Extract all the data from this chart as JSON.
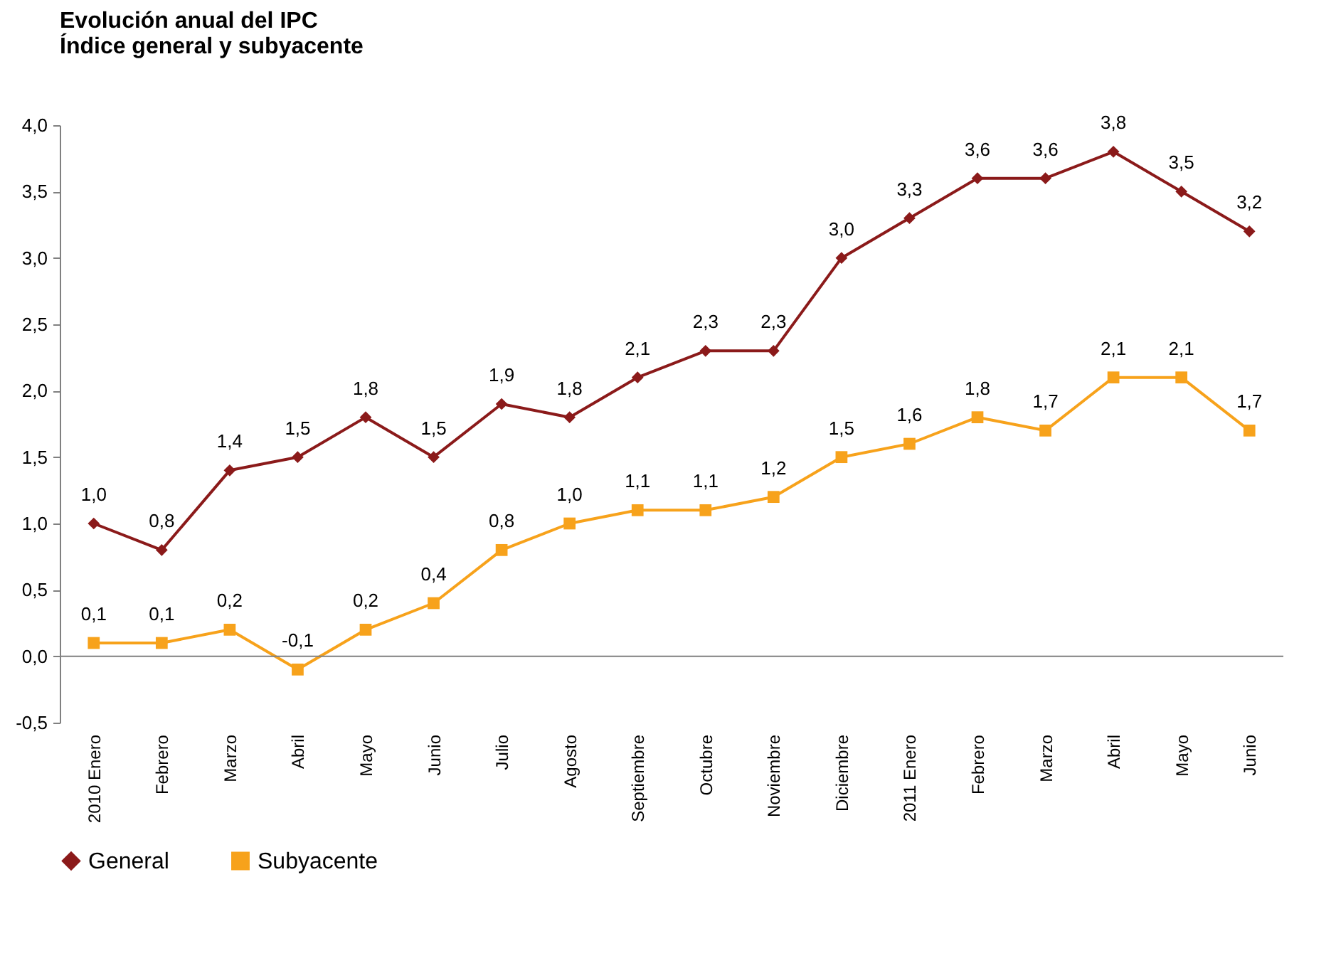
{
  "chart_data": {
    "type": "line",
    "title": "Evolución anual del IPC\nÍndice general y subyacente",
    "categories": [
      "2010 Enero",
      "Febrero",
      "Marzo",
      "Abril",
      "Mayo",
      "Junio",
      "Julio",
      "Agosto",
      "Septiembre",
      "Octubre",
      "Noviembre",
      "Diciembre",
      "2011 Enero",
      "Febrero",
      "Marzo",
      "Abril",
      "Mayo",
      "Junio"
    ],
    "series": [
      {
        "name": "General",
        "color": "#8b1a1a",
        "marker": "diamond",
        "values": [
          1.0,
          0.8,
          1.4,
          1.5,
          1.8,
          1.5,
          1.9,
          1.8,
          2.1,
          2.3,
          2.3,
          3.0,
          3.3,
          3.6,
          3.6,
          3.8,
          3.5,
          3.2
        ],
        "value_labels": [
          "1,0",
          "0,8",
          "1,4",
          "1,5",
          "1,8",
          "1,5",
          "1,9",
          "1,8",
          "2,1",
          "2,3",
          "2,3",
          "3,0",
          "3,3",
          "3,6",
          "3,6",
          "3,8",
          "3,5",
          "3,2"
        ]
      },
      {
        "name": "Subyacente",
        "color": "#f7a21b",
        "marker": "square",
        "values": [
          0.1,
          0.1,
          0.2,
          -0.1,
          0.2,
          0.4,
          0.8,
          1.0,
          1.1,
          1.1,
          1.2,
          1.5,
          1.6,
          1.8,
          1.7,
          2.1,
          2.1,
          1.7
        ],
        "value_labels": [
          "0,1",
          "0,1",
          "0,2",
          "-0,1",
          "0,2",
          "0,4",
          "0,8",
          "1,0",
          "1,1",
          "1,1",
          "1,2",
          "1,5",
          "1,6",
          "1,8",
          "1,7",
          "2,1",
          "2,1",
          "1,7"
        ]
      }
    ],
    "ylim": [
      -0.5,
      4.0
    ],
    "yticks": [
      {
        "value": -0.5,
        "label": "-0,5"
      },
      {
        "value": 0,
        "label": "0,0"
      },
      {
        "value": 0.5,
        "label": "0,5"
      },
      {
        "value": 1,
        "label": "1,0"
      },
      {
        "value": 1.5,
        "label": "1,5"
      },
      {
        "value": 2,
        "label": "2,0"
      },
      {
        "value": 2.5,
        "label": "2,5"
      },
      {
        "value": 3,
        "label": "3,0"
      },
      {
        "value": 3.5,
        "label": "3,5"
      },
      {
        "value": 4,
        "label": "4,0"
      }
    ],
    "ref_lines": [
      {
        "axis": "y",
        "value": 0,
        "color": "#808080"
      }
    ],
    "grid": false,
    "legend": "bottom",
    "line_style": "solid"
  }
}
